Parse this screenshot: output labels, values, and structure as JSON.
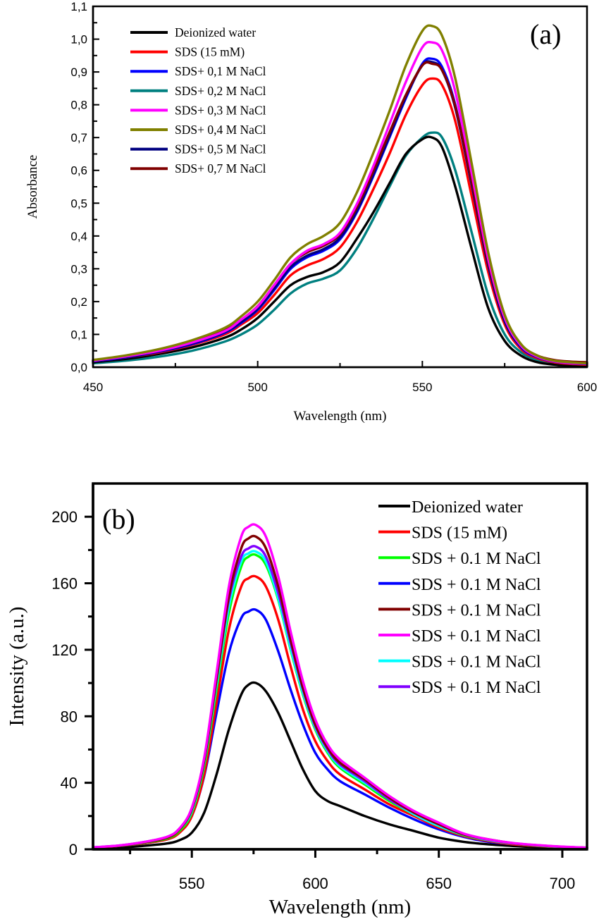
{
  "chart_data": [
    {
      "type": "line",
      "panel_label": "(a)",
      "title": "",
      "xlabel": "Wavelength (nm)",
      "ylabel": "Absorbance",
      "xlim": [
        450,
        600
      ],
      "ylim": [
        0.0,
        1.1
      ],
      "xticks": [
        450,
        500,
        550,
        600
      ],
      "xtick_labels": [
        "450",
        "500",
        "550",
        "600"
      ],
      "x_minor_ticks": [
        475,
        525,
        575
      ],
      "yticks": [
        0.0,
        0.1,
        0.2,
        0.3,
        0.4,
        0.5,
        0.6,
        0.7,
        0.8,
        0.9,
        1.0,
        1.1
      ],
      "ytick_labels": [
        "0,0",
        "0,1",
        "0,2",
        "0,3",
        "0,4",
        "0,5",
        "0,6",
        "0,7",
        "0,8",
        "0,9",
        "1,0",
        "1,1"
      ],
      "y_minor_ticks": [
        0.05,
        0.15,
        0.25,
        0.35,
        0.45,
        0.55,
        0.65,
        0.75,
        0.85,
        0.95,
        1.05
      ],
      "grid": false,
      "legend_position": "top-left",
      "x": [
        450,
        460,
        470,
        480,
        490,
        495,
        500,
        505,
        510,
        515,
        520,
        525,
        530,
        535,
        540,
        545,
        550,
        553,
        556,
        560,
        565,
        570,
        575,
        580,
        585,
        590,
        595,
        600
      ],
      "series": [
        {
          "name": "Deionized water",
          "color": "#000000",
          "values": [
            0.015,
            0.025,
            0.04,
            0.06,
            0.09,
            0.115,
            0.15,
            0.2,
            0.25,
            0.275,
            0.29,
            0.32,
            0.39,
            0.47,
            0.56,
            0.65,
            0.695,
            0.7,
            0.67,
            0.55,
            0.36,
            0.18,
            0.08,
            0.035,
            0.015,
            0.008,
            0.005,
            0.003
          ]
        },
        {
          "name": "SDS (15 mM)",
          "color": "#ff0000",
          "values": [
            0.018,
            0.03,
            0.045,
            0.068,
            0.1,
            0.13,
            0.165,
            0.22,
            0.28,
            0.31,
            0.33,
            0.365,
            0.44,
            0.54,
            0.65,
            0.77,
            0.86,
            0.88,
            0.86,
            0.75,
            0.52,
            0.29,
            0.13,
            0.055,
            0.027,
            0.015,
            0.01,
            0.008
          ]
        },
        {
          "name": "SDS+ 0,1 M NaCl",
          "color": "#0000ff",
          "values": [
            0.018,
            0.03,
            0.047,
            0.07,
            0.105,
            0.135,
            0.175,
            0.235,
            0.3,
            0.335,
            0.355,
            0.39,
            0.47,
            0.58,
            0.7,
            0.82,
            0.925,
            0.94,
            0.915,
            0.8,
            0.56,
            0.31,
            0.14,
            0.06,
            0.03,
            0.017,
            0.012,
            0.01
          ]
        },
        {
          "name": "SDS+ 0,2 M NaCl",
          "color": "#008080",
          "values": [
            0.012,
            0.02,
            0.032,
            0.05,
            0.078,
            0.1,
            0.13,
            0.175,
            0.225,
            0.255,
            0.27,
            0.295,
            0.36,
            0.45,
            0.55,
            0.645,
            0.7,
            0.715,
            0.7,
            0.6,
            0.41,
            0.22,
            0.1,
            0.045,
            0.022,
            0.012,
            0.008,
            0.006
          ]
        },
        {
          "name": "SDS+ 0,3 M NaCl",
          "color": "#ff00ff",
          "values": [
            0.02,
            0.033,
            0.05,
            0.075,
            0.11,
            0.145,
            0.185,
            0.25,
            0.315,
            0.355,
            0.375,
            0.41,
            0.495,
            0.61,
            0.74,
            0.87,
            0.975,
            0.99,
            0.965,
            0.84,
            0.59,
            0.33,
            0.15,
            0.065,
            0.032,
            0.018,
            0.013,
            0.011
          ]
        },
        {
          "name": "SDS+ 0,4 M NaCl",
          "color": "#808000",
          "values": [
            0.022,
            0.036,
            0.055,
            0.082,
            0.12,
            0.155,
            0.2,
            0.265,
            0.335,
            0.375,
            0.4,
            0.44,
            0.53,
            0.65,
            0.78,
            0.92,
            1.025,
            1.04,
            1.01,
            0.88,
            0.62,
            0.35,
            0.16,
            0.07,
            0.035,
            0.02,
            0.015,
            0.012
          ]
        },
        {
          "name": "SDS+ 0,5 M NaCl",
          "color": "#000080",
          "values": [
            0.019,
            0.031,
            0.048,
            0.072,
            0.107,
            0.138,
            0.178,
            0.24,
            0.305,
            0.34,
            0.36,
            0.395,
            0.475,
            0.585,
            0.705,
            0.825,
            0.92,
            0.93,
            0.905,
            0.79,
            0.555,
            0.31,
            0.14,
            0.062,
            0.031,
            0.018,
            0.013,
            0.011
          ]
        },
        {
          "name": "SDS+ 0,7 M NaCl",
          "color": "#800000",
          "values": [
            0.021,
            0.034,
            0.051,
            0.076,
            0.112,
            0.145,
            0.186,
            0.25,
            0.315,
            0.35,
            0.37,
            0.405,
            0.485,
            0.595,
            0.715,
            0.83,
            0.92,
            0.925,
            0.905,
            0.795,
            0.565,
            0.32,
            0.15,
            0.068,
            0.035,
            0.022,
            0.017,
            0.015
          ]
        }
      ]
    },
    {
      "type": "line",
      "panel_label": "(b)",
      "title": "",
      "xlabel": "Wavelength (nm)",
      "ylabel": "Intensity (a.u.)",
      "xlim": [
        510,
        710
      ],
      "ylim": [
        0,
        220
      ],
      "xticks": [
        550,
        600,
        650,
        700
      ],
      "xtick_labels": [
        "550",
        "600",
        "650",
        "700"
      ],
      "x_minor_ticks": [
        525,
        575,
        625,
        675
      ],
      "yticks": [
        0,
        40,
        80,
        120,
        160,
        200
      ],
      "ytick_labels": [
        "0",
        "40",
        "80",
        "120",
        "160",
        "200"
      ],
      "y_minor_ticks": [
        20,
        60,
        100,
        140,
        180
      ],
      "grid": false,
      "legend_position": "top-right",
      "x": [
        510,
        520,
        530,
        540,
        545,
        550,
        555,
        560,
        565,
        570,
        573,
        576,
        580,
        585,
        590,
        595,
        600,
        605,
        610,
        620,
        630,
        640,
        650,
        660,
        670,
        680,
        690,
        700,
        710
      ],
      "series": [
        {
          "name": "Deionized water",
          "color": "#000000",
          "values": [
            0.5,
            1,
            2,
            3.5,
            5.5,
            10,
            22,
            45,
            72,
            93,
            99,
            100,
            95,
            82,
            65,
            48,
            35,
            29,
            26,
            20,
            15,
            11,
            7,
            4.5,
            3,
            2,
            1.3,
            0.8,
            0.5
          ]
        },
        {
          "name": "SDS (15 mM)",
          "color": "#ff0000",
          "values": [
            1,
            2,
            3.5,
            6,
            10,
            20,
            45,
            88,
            132,
            158,
            163,
            164,
            158,
            138,
            110,
            84,
            65,
            53,
            45,
            36,
            27,
            20,
            13,
            8,
            5,
            3,
            2,
            1.2,
            0.8
          ]
        },
        {
          "name": "SDS + 0.1 M NaCl",
          "color": "#00ff00",
          "values": [
            1,
            2,
            3.8,
            6.5,
            11,
            22,
            50,
            96,
            142,
            170,
            176,
            177,
            171,
            150,
            120,
            93,
            72,
            58,
            49,
            39,
            29,
            21,
            14,
            8.5,
            5.5,
            3.5,
            2.2,
            1.4,
            0.9
          ]
        },
        {
          "name": "SDS + 0.1 M NaCl",
          "color": "#0000ff",
          "values": [
            1,
            2,
            3.5,
            6,
            10,
            20,
            44,
            82,
            118,
            139,
            143,
            144,
            138,
            119,
            96,
            75,
            58,
            48,
            41,
            33,
            25,
            18,
            12,
            7.5,
            4.5,
            3,
            2,
            1.3,
            0.8
          ]
        },
        {
          "name": "SDS + 0.1 M NaCl",
          "color": "#800000",
          "values": [
            1,
            2,
            4,
            7,
            12,
            24,
            53,
            102,
            152,
            181,
            187,
            188,
            181,
            158,
            126,
            97,
            75,
            61,
            52,
            42,
            31,
            22,
            15,
            9,
            6,
            3.7,
            2.4,
            1.5,
            1
          ]
        },
        {
          "name": "SDS + 0.1 M NaCl",
          "color": "#ff00ff",
          "values": [
            1.2,
            2.2,
            4.2,
            7.5,
            12.5,
            25,
            55,
            106,
            158,
            188,
            194,
            195,
            188,
            164,
            131,
            101,
            78,
            63,
            54,
            43,
            32,
            23,
            16,
            9.5,
            6,
            3.8,
            2.5,
            1.6,
            1
          ]
        },
        {
          "name": "SDS + 0.1 M NaCl",
          "color": "#00ffff",
          "values": [
            1.1,
            2.1,
            4,
            7,
            12,
            23,
            52,
            99,
            146,
            173,
            178,
            179,
            173,
            151,
            121,
            94,
            73,
            59,
            50,
            40,
            30,
            21,
            14,
            8.8,
            5.6,
            3.5,
            2.3,
            1.4,
            0.9
          ]
        },
        {
          "name": "SDS + 0.1 M NaCl",
          "color": "#8000ff",
          "values": [
            1.2,
            2.2,
            4.2,
            7.5,
            12.5,
            24.5,
            54,
            102,
            150,
            176,
            181,
            182,
            176,
            154,
            124,
            96,
            74,
            60,
            51,
            41,
            30,
            22,
            15,
            9,
            5.8,
            3.6,
            2.4,
            1.5,
            1
          ]
        }
      ]
    }
  ]
}
